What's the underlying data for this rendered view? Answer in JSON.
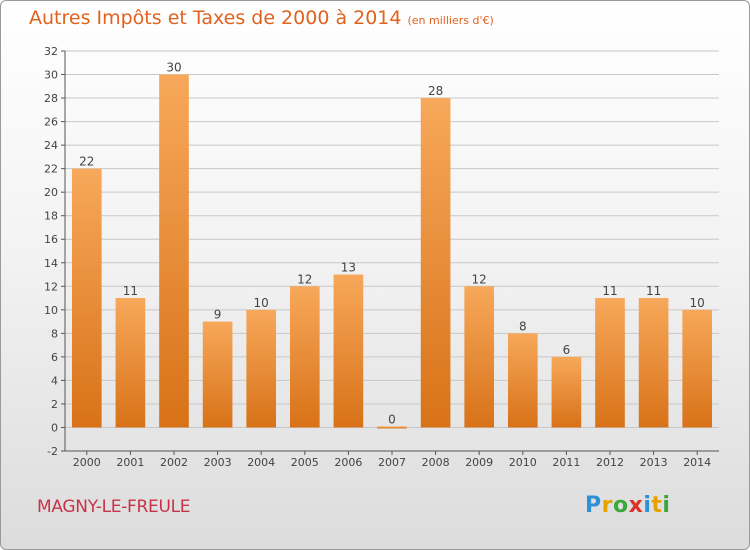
{
  "title": "Autres Impôts et Taxes de 2000 à 2014",
  "subtitle": "(en milliers d'€)",
  "commune": "MAGNY-LE-FREULE",
  "logo": {
    "text": "Proxiti",
    "colors": [
      "#2f8fd8",
      "#e8a200",
      "#3aa83a",
      "#d8342a",
      "#2f8fd8",
      "#e8a200",
      "#3aa83a"
    ]
  },
  "colors": {
    "title": "#e0621e",
    "commune": "#c8334a",
    "bar_top": "#f7a85a",
    "bar_bottom": "#d87218",
    "label": "#444444"
  },
  "chart_data": {
    "type": "bar",
    "categories": [
      "2000",
      "2001",
      "2002",
      "2003",
      "2004",
      "2005",
      "2006",
      "2007",
      "2008",
      "2009",
      "2010",
      "2011",
      "2012",
      "2013",
      "2014"
    ],
    "values": [
      22,
      11,
      30,
      9,
      10,
      12,
      13,
      0,
      28,
      12,
      8,
      6,
      11,
      11,
      10
    ],
    "yticks": [
      -2,
      0,
      2,
      4,
      6,
      8,
      10,
      12,
      14,
      16,
      18,
      20,
      22,
      24,
      26,
      28,
      30,
      32
    ],
    "ylim": [
      -2,
      32
    ],
    "grid": "horizontal"
  }
}
